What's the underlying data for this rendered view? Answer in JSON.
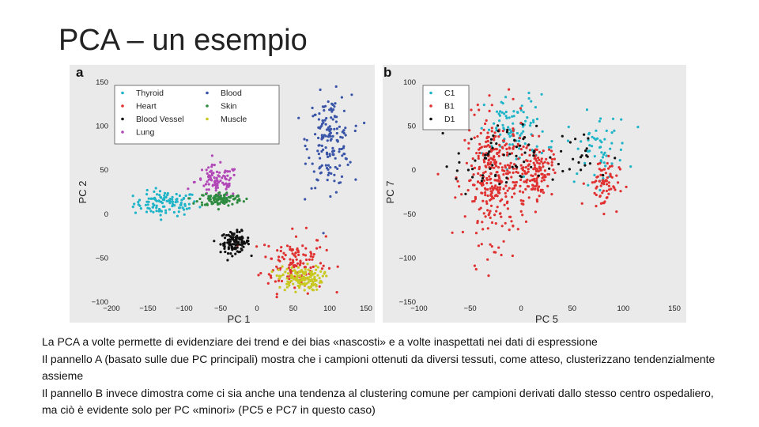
{
  "slide": {
    "title": "PCA – un esempio"
  },
  "chart_data": [
    {
      "type": "scatter",
      "panel_label": "a",
      "xlabel": "PC 1",
      "ylabel": "PC 2",
      "xlim": [
        -200,
        150
      ],
      "ylim": [
        -100,
        150
      ],
      "xticks": [
        -200,
        -150,
        -100,
        -50,
        0,
        50,
        100,
        150
      ],
      "yticks": [
        -100,
        -50,
        0,
        50,
        100,
        150
      ],
      "tick_labels_x": [
        "−200",
        "−150",
        "−100",
        "−50",
        "0",
        "50",
        "100",
        "150"
      ],
      "tick_labels_y": [
        "−100",
        "−50",
        "0",
        "50",
        "100",
        "150"
      ],
      "legend_position": "top-left",
      "series": [
        {
          "name": "Thyroid",
          "color": "#1fb4c8",
          "clusters": [
            {
              "cx": -125,
              "cy": 12,
              "sx": 22,
              "sy": 7,
              "n": 110
            }
          ]
        },
        {
          "name": "Heart",
          "color": "#e03030",
          "clusters": [
            {
              "cx": 50,
              "cy": -55,
              "sx": 22,
              "sy": 17,
              "n": 130
            }
          ]
        },
        {
          "name": "Blood Vessel",
          "color": "#111111",
          "clusters": [
            {
              "cx": -30,
              "cy": -32,
              "sx": 10,
              "sy": 6,
              "n": 110
            }
          ]
        },
        {
          "name": "Lung",
          "color": "#b248b8",
          "clusters": [
            {
              "cx": -55,
              "cy": 37,
              "sx": 15,
              "sy": 9,
              "n": 90
            }
          ]
        },
        {
          "name": "Blood",
          "color": "#3a55a8",
          "clusters": [
            {
              "cx": 100,
              "cy": 83,
              "sx": 15,
              "sy": 26,
              "n": 160
            }
          ]
        },
        {
          "name": "Skin",
          "color": "#2e8b40",
          "clusters": [
            {
              "cx": -50,
              "cy": 17,
              "sx": 15,
              "sy": 4,
              "n": 110
            }
          ]
        },
        {
          "name": "Muscle",
          "color": "#c8c820",
          "clusters": [
            {
              "cx": 60,
              "cy": -73,
              "sx": 15,
              "sy": 7,
              "n": 140
            }
          ]
        }
      ]
    },
    {
      "type": "scatter",
      "panel_label": "b",
      "xlabel": "PC 5",
      "ylabel": "PC 7",
      "xlim": [
        -100,
        150
      ],
      "ylim": [
        -150,
        100
      ],
      "xticks": [
        -100,
        -50,
        0,
        50,
        100,
        150
      ],
      "yticks": [
        -150,
        -100,
        -50,
        0,
        50,
        100
      ],
      "tick_labels_x": [
        "−100",
        "−50",
        "0",
        "50",
        "100",
        "150"
      ],
      "tick_labels_y": [
        "−150",
        "−100",
        "−50",
        "0",
        "50",
        "100"
      ],
      "legend_position": "top-left",
      "series": [
        {
          "name": "C1",
          "color": "#1fb4c8",
          "clusters": [
            {
              "cx": -5,
              "cy": 45,
              "sx": 15,
              "sy": 20,
              "n": 90
            },
            {
              "cx": 75,
              "cy": 25,
              "sx": 15,
              "sy": 20,
              "n": 60
            }
          ]
        },
        {
          "name": "B1",
          "color": "#e03030",
          "clusters": [
            {
              "cx": -25,
              "cy": -10,
              "sx": 15,
              "sy": 35,
              "n": 330
            },
            {
              "cx": 15,
              "cy": 0,
              "sx": 8,
              "sy": 15,
              "n": 120
            },
            {
              "cx": 80,
              "cy": -15,
              "sx": 8,
              "sy": 15,
              "n": 70
            }
          ]
        },
        {
          "name": "D1",
          "color": "#111111",
          "clusters": [
            {
              "cx": -25,
              "cy": 10,
              "sx": 20,
              "sy": 20,
              "n": 60
            },
            {
              "cx": 50,
              "cy": 15,
              "sx": 20,
              "sy": 15,
              "n": 25
            }
          ]
        }
      ]
    }
  ],
  "caption": {
    "line1": "La PCA a volte permette di evidenziare dei trend e dei bias «nascosti» e a volte inaspettati nei dati di espressione",
    "line2": "Il pannello A (basato sulle due PC principali) mostra che i campioni ottenuti da diversi tessuti, come atteso, clusterizzano tendenzialmente assieme",
    "line3": "Il pannello B invece dimostra come ci sia anche una tendenza al clustering comune per campioni derivati dallo stesso centro ospedaliero, ma ciò è evidente solo per PC «minori» (PC5 e PC7 in questo caso)"
  }
}
